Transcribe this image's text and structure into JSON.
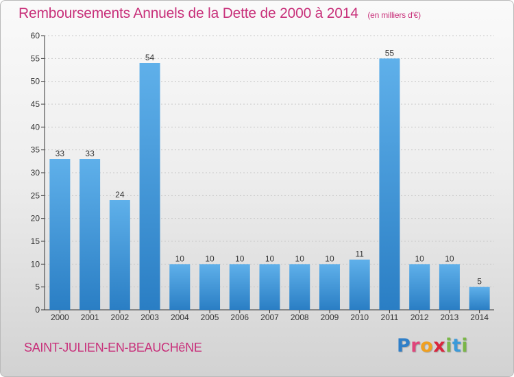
{
  "header": {
    "title": "Remboursements Annuels de la Dette de 2000 à 2014",
    "unit": "(en milliers d'€)"
  },
  "footer": {
    "commune": "SAINT-JULIEN-EN-BEAUCHêNE",
    "brand_letters": [
      {
        "ch": "P",
        "color": "#2f7fc8"
      },
      {
        "ch": "r",
        "color": "#e0457b"
      },
      {
        "ch": "o",
        "color": "#f0a020"
      },
      {
        "ch": "x",
        "color": "#d9263d"
      },
      {
        "ch": "i",
        "color": "#7ab648"
      },
      {
        "ch": "t",
        "color": "#3b9ad9"
      },
      {
        "ch": "i",
        "color": "#7ab648"
      }
    ]
  },
  "colors": {
    "bar_light": "#5fb0ea",
    "bar_dark": "#2a7ec4",
    "title": "#c8307a",
    "grid": "#c8c8c8",
    "axis": "#333333"
  },
  "chart_data": {
    "type": "bar",
    "title": "Remboursements Annuels de la Dette de 2000 à 2014",
    "unit": "(en milliers d'€)",
    "xlabel": "",
    "ylabel": "",
    "categories": [
      "2000",
      "2001",
      "2002",
      "2003",
      "2004",
      "2005",
      "2006",
      "2007",
      "2008",
      "2009",
      "2010",
      "2011",
      "2012",
      "2013",
      "2014"
    ],
    "values": [
      33,
      33,
      24,
      54,
      10,
      10,
      10,
      10,
      10,
      10,
      11,
      55,
      10,
      10,
      5
    ],
    "ylim": [
      0,
      60
    ],
    "yticks": [
      0,
      5,
      10,
      15,
      20,
      25,
      30,
      35,
      40,
      45,
      50,
      55,
      60
    ],
    "grid": true,
    "data_labels": true
  }
}
